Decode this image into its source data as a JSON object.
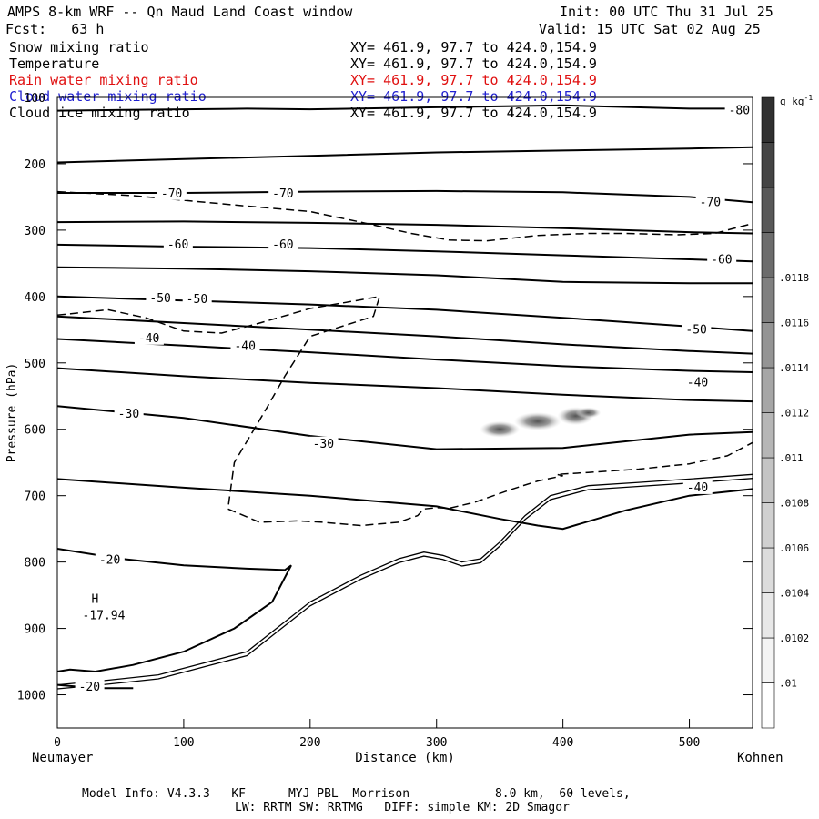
{
  "header": {
    "title": "AMPS 8-km WRF -- Qn Maud Land Coast window",
    "init": "Init: 00 UTC Thu 31 Jul 25",
    "fcst": "Fcst:   63 h",
    "valid": "Valid: 15 UTC Sat 02 Aug 25"
  },
  "fields": [
    {
      "name": "Snow mixing ratio",
      "xy": "XY= 461.9, 97.7 to 424.0,154.9",
      "color": "#000000"
    },
    {
      "name": "Temperature",
      "xy": "XY= 461.9, 97.7 to 424.0,154.9",
      "color": "#000000"
    },
    {
      "name": "Rain water mixing ratio",
      "xy": "XY= 461.9, 97.7 to 424.0,154.9",
      "color": "#e01010"
    },
    {
      "name": "Cloud water mixing ratio",
      "xy": "XY= 461.9, 97.7 to 424.0,154.9",
      "color": "#2020d0"
    },
    {
      "name": "Cloud ice mixing ratio",
      "xy": "XY= 461.9, 97.7 to 424.0,154.9",
      "color": "#000000"
    }
  ],
  "footer": {
    "line1": "Model Info: V4.3.3   KF      MYJ PBL  Morrison            8.0 km,  60 levels,",
    "line2": "LW: RRTM SW: RRTMG   DIFF: simple KM: 2D Smagor"
  },
  "chart_data": {
    "type": "cross-section",
    "xlabel": "Distance (km)",
    "ylabel": "Pressure (hPa)",
    "x_start_label": "Neumayer",
    "x_end_label": "Kohnen",
    "xlim": [
      0,
      550
    ],
    "ylim": [
      1050,
      100
    ],
    "x_ticks": [
      0,
      100,
      200,
      300,
      400,
      500
    ],
    "y_ticks": [
      100,
      200,
      300,
      400,
      500,
      600,
      700,
      800,
      900,
      1000
    ],
    "colorbar": {
      "unit": "g kg",
      "unit_exp": "-1",
      "labels": [
        ".01",
        ".0102",
        ".0104",
        ".0106",
        ".0108",
        ".011",
        ".0112",
        ".0114",
        ".0116",
        ".0118"
      ],
      "colors": [
        "#ffffff",
        "#f4f4f4",
        "#e8e8e8",
        "#dcdcdc",
        "#d0d0d0",
        "#c4c4c4",
        "#b6b6b6",
        "#a6a6a6",
        "#949494",
        "#808080",
        "#6c6c6c",
        "#585858",
        "#444444",
        "#303030"
      ]
    },
    "isotherms": [
      {
        "label": "-80",
        "label_pos": [
          531,
          120
        ],
        "pts": [
          [
            0,
            120
          ],
          [
            100,
            118
          ],
          [
            150,
            117
          ],
          [
            200,
            118
          ],
          [
            300,
            115
          ],
          [
            400,
            112
          ],
          [
            500,
            117
          ],
          [
            550,
            117
          ]
        ]
      },
      {
        "label": "",
        "label_pos": null,
        "pts": [
          [
            0,
            198
          ],
          [
            100,
            193
          ],
          [
            200,
            188
          ],
          [
            300,
            183
          ],
          [
            400,
            180
          ],
          [
            500,
            177
          ],
          [
            550,
            175
          ]
        ]
      },
      {
        "label": "-70",
        "label_pos": [
          82,
          245
        ],
        "pts": [
          [
            0,
            244
          ],
          [
            100,
            244
          ],
          [
            200,
            242
          ],
          [
            300,
            241
          ],
          [
            400,
            243
          ],
          [
            500,
            250
          ],
          [
            550,
            258
          ]
        ]
      },
      {
        "label": "-70",
        "label_pos": [
          170,
          245
        ],
        "pts": [
          [
            0,
            288
          ],
          [
            100,
            287
          ],
          [
            200,
            289
          ],
          [
            300,
            292
          ],
          [
            400,
            297
          ],
          [
            500,
            303
          ],
          [
            550,
            305
          ]
        ]
      },
      {
        "label": "-70",
        "label_pos": [
          508,
          258
        ],
        "pts": []
      },
      {
        "label": "-60",
        "label_pos": [
          87,
          322
        ],
        "pts": [
          [
            0,
            322
          ],
          [
            100,
            325
          ],
          [
            200,
            327
          ],
          [
            300,
            332
          ],
          [
            400,
            338
          ],
          [
            500,
            344
          ],
          [
            550,
            347
          ]
        ]
      },
      {
        "label": "-60",
        "label_pos": [
          170,
          322
        ],
        "pts": [
          [
            0,
            356
          ],
          [
            100,
            358
          ],
          [
            200,
            362
          ],
          [
            300,
            368
          ],
          [
            400,
            378
          ],
          [
            500,
            380
          ],
          [
            550,
            380
          ]
        ]
      },
      {
        "label": "-60",
        "label_pos": [
          517,
          345
        ],
        "pts": []
      },
      {
        "label": "-50",
        "label_pos": [
          73,
          403
        ],
        "pts": [
          [
            0,
            400
          ],
          [
            100,
            406
          ],
          [
            200,
            412
          ],
          [
            300,
            420
          ],
          [
            400,
            432
          ],
          [
            500,
            445
          ],
          [
            550,
            452
          ]
        ]
      },
      {
        "label": "-50",
        "label_pos": [
          102,
          404
        ],
        "pts": [
          [
            0,
            430
          ],
          [
            100,
            440
          ],
          [
            200,
            450
          ],
          [
            300,
            460
          ],
          [
            400,
            472
          ],
          [
            500,
            482
          ],
          [
            550,
            486
          ]
        ]
      },
      {
        "label": "-50",
        "label_pos": [
          497,
          450
        ],
        "pts": []
      },
      {
        "label": "-40",
        "label_pos": [
          64,
          463
        ],
        "pts": [
          [
            0,
            464
          ],
          [
            100,
            474
          ],
          [
            200,
            484
          ],
          [
            300,
            495
          ],
          [
            400,
            505
          ],
          [
            500,
            512
          ],
          [
            550,
            514
          ]
        ]
      },
      {
        "label": "-40",
        "label_pos": [
          140,
          475
        ],
        "pts": [
          [
            0,
            508
          ],
          [
            100,
            520
          ],
          [
            200,
            530
          ],
          [
            300,
            538
          ],
          [
            400,
            548
          ],
          [
            500,
            556
          ],
          [
            550,
            558
          ]
        ]
      },
      {
        "label": "-40",
        "label_pos": [
          498,
          530
        ],
        "pts": []
      },
      {
        "label": "-30",
        "label_pos": [
          48,
          577
        ],
        "pts": [
          [
            0,
            565
          ],
          [
            100,
            583
          ],
          [
            200,
            610
          ],
          [
            300,
            630
          ],
          [
            400,
            628
          ],
          [
            500,
            608
          ],
          [
            550,
            604
          ]
        ]
      },
      {
        "label": "-30",
        "label_pos": [
          202,
          622
        ],
        "pts": [
          [
            0,
            675
          ],
          [
            100,
            688
          ],
          [
            200,
            700
          ],
          [
            300,
            716
          ],
          [
            350,
            735
          ],
          [
            380,
            745
          ],
          [
            400,
            750
          ],
          [
            450,
            722
          ],
          [
            500,
            700
          ],
          [
            550,
            690
          ]
        ]
      },
      {
        "label": "-40",
        "label_pos": [
          498,
          688
        ],
        "pts": []
      },
      {
        "label": "-20",
        "label_pos": [
          33,
          797
        ],
        "pts": [
          [
            0,
            780
          ],
          [
            50,
            795
          ],
          [
            100,
            805
          ],
          [
            150,
            810
          ],
          [
            180,
            812
          ],
          [
            185,
            805
          ],
          [
            170,
            860
          ],
          [
            140,
            900
          ],
          [
            100,
            935
          ],
          [
            60,
            955
          ],
          [
            30,
            965
          ],
          [
            10,
            962
          ],
          [
            0,
            965
          ]
        ]
      },
      {
        "label": "-20",
        "label_pos": [
          17,
          988
        ],
        "pts": [
          [
            0,
            985
          ],
          [
            30,
            990
          ],
          [
            60,
            990
          ]
        ]
      }
    ],
    "cloud_ice_contour": {
      "label": "",
      "pts": [
        [
          0,
          242
        ],
        [
          60,
          248
        ],
        [
          140,
          262
        ],
        [
          200,
          272
        ],
        [
          240,
          288
        ],
        [
          280,
          305
        ],
        [
          310,
          315
        ],
        [
          340,
          316
        ],
        [
          380,
          308
        ],
        [
          420,
          305
        ],
        [
          450,
          305
        ],
        [
          490,
          307
        ],
        [
          520,
          305
        ],
        [
          550,
          290
        ]
      ]
    },
    "cloud_ice_contour2": {
      "label": "",
      "pts": [
        [
          0,
          428
        ],
        [
          40,
          420
        ],
        [
          70,
          432
        ],
        [
          100,
          452
        ],
        [
          130,
          455
        ],
        [
          160,
          440
        ],
        [
          200,
          418
        ],
        [
          240,
          405
        ],
        [
          255,
          400
        ],
        [
          250,
          430
        ],
        [
          200,
          460
        ],
        [
          180,
          520
        ],
        [
          165,
          570
        ],
        [
          140,
          650
        ],
        [
          135,
          720
        ],
        [
          160,
          740
        ],
        [
          190,
          738
        ],
        [
          210,
          740
        ],
        [
          240,
          745
        ],
        [
          270,
          740
        ],
        [
          285,
          730
        ],
        [
          290,
          720
        ],
        [
          300,
          718
        ],
        [
          310,
          719
        ],
        [
          330,
          710
        ],
        [
          360,
          690
        ],
        [
          380,
          678
        ],
        [
          400,
          670
        ],
        [
          395,
          668
        ],
        [
          420,
          665
        ],
        [
          460,
          660
        ],
        [
          500,
          652
        ],
        [
          530,
          640
        ],
        [
          550,
          620
        ]
      ]
    },
    "terrain": {
      "pts": [
        [
          0,
          985
        ],
        [
          40,
          978
        ],
        [
          80,
          970
        ],
        [
          120,
          950
        ],
        [
          150,
          935
        ],
        [
          170,
          905
        ],
        [
          200,
          860
        ],
        [
          240,
          820
        ],
        [
          270,
          795
        ],
        [
          290,
          785
        ],
        [
          305,
          790
        ],
        [
          320,
          800
        ],
        [
          335,
          795
        ],
        [
          350,
          770
        ],
        [
          370,
          730
        ],
        [
          390,
          700
        ],
        [
          420,
          685
        ],
        [
          460,
          680
        ],
        [
          500,
          675
        ],
        [
          550,
          668
        ]
      ]
    },
    "maximum": {
      "label": "H",
      "value": "-17.94",
      "pos": [
        27,
        870
      ]
    },
    "snow_blob": {
      "x": [
        330,
        430
      ],
      "p": [
        570,
        615
      ]
    }
  }
}
